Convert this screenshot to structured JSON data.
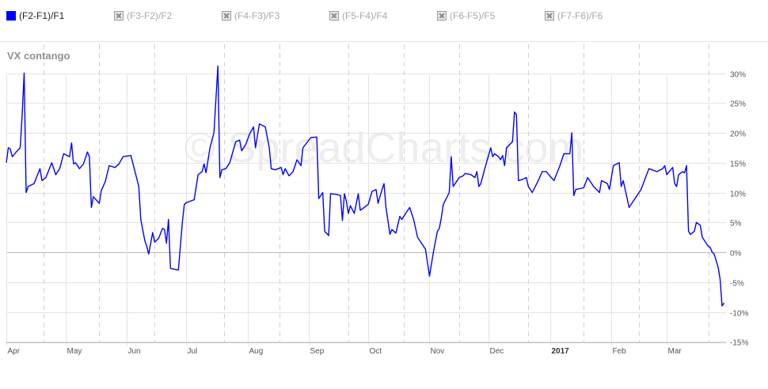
{
  "legend": [
    {
      "label": "(F2-F1)/F1",
      "active": true
    },
    {
      "label": "(F3-F2)/F2",
      "active": false
    },
    {
      "label": "(F4-F3)/F3",
      "active": false
    },
    {
      "label": "(F5-F4)/F4",
      "active": false
    },
    {
      "label": "(F6-F5)/F5",
      "active": false
    },
    {
      "label": "(F7-F6)/F6",
      "active": false
    }
  ],
  "watermark": "© SpreadCharts.com",
  "colors": {
    "series": "#0000ff",
    "grid": "#e3e3e3",
    "zero": "#b8b8b8",
    "dashed": "#cfcfcf",
    "axis_text": "#555555"
  },
  "chart_data": {
    "type": "line",
    "title": "VX contango",
    "xlabel": "",
    "ylabel": "",
    "ylim": [
      -15,
      32
    ],
    "y_ticks": [
      30,
      25,
      20,
      15,
      10,
      5,
      0,
      -5,
      -10,
      -15
    ],
    "y_tick_labels": [
      "30%",
      "25%",
      "20%",
      "15%",
      "10%",
      "5%",
      "0%",
      "-5%",
      "-10%",
      "-15%"
    ],
    "x_range": [
      "2016-04-01",
      "2017-03-31"
    ],
    "x_ticks": [
      {
        "label": "Apr",
        "date": "2016-04-01",
        "bold": false
      },
      {
        "label": "May",
        "date": "2016-05-01",
        "bold": false
      },
      {
        "label": "Jun",
        "date": "2016-06-01",
        "bold": false
      },
      {
        "label": "Jul",
        "date": "2016-07-01",
        "bold": false
      },
      {
        "label": "Aug",
        "date": "2016-08-01",
        "bold": false
      },
      {
        "label": "Sep",
        "date": "2016-09-01",
        "bold": false
      },
      {
        "label": "Oct",
        "date": "2016-10-01",
        "bold": false
      },
      {
        "label": "Nov",
        "date": "2016-11-01",
        "bold": false
      },
      {
        "label": "Dec",
        "date": "2016-12-01",
        "bold": false
      },
      {
        "label": "2017",
        "date": "2017-01-01",
        "bold": true
      },
      {
        "label": "Feb",
        "date": "2017-02-01",
        "bold": false
      },
      {
        "label": "Mar",
        "date": "2017-03-01",
        "bold": false
      }
    ],
    "expiry_markers": [
      "2016-04-20",
      "2016-05-18",
      "2016-06-15",
      "2016-07-20",
      "2016-08-17",
      "2016-09-21",
      "2016-10-19",
      "2016-11-16",
      "2016-12-21",
      "2017-01-18",
      "2017-02-15",
      "2017-03-22"
    ],
    "grid": true,
    "series": [
      {
        "name": "(F2-F1)/F1",
        "points": [
          [
            "2016-04-01",
            15.0
          ],
          [
            "2016-04-02",
            17.5
          ],
          [
            "2016-04-03",
            17.3
          ],
          [
            "2016-04-04",
            16.0
          ],
          [
            "2016-04-06",
            16.8
          ],
          [
            "2016-04-08",
            17.5
          ],
          [
            "2016-04-09",
            23.0
          ],
          [
            "2016-04-10",
            30.0
          ],
          [
            "2016-04-11",
            10.0
          ],
          [
            "2016-04-12",
            11.0
          ],
          [
            "2016-04-15",
            11.5
          ],
          [
            "2016-04-18",
            14.0
          ],
          [
            "2016-04-19",
            12.0
          ],
          [
            "2016-04-21",
            12.5
          ],
          [
            "2016-04-24",
            15.0
          ],
          [
            "2016-04-26",
            13.0
          ],
          [
            "2016-04-28",
            14.0
          ],
          [
            "2016-04-30",
            16.5
          ],
          [
            "2016-05-03",
            16.0
          ],
          [
            "2016-05-04",
            18.3
          ],
          [
            "2016-05-05",
            14.8
          ],
          [
            "2016-05-06",
            15.0
          ],
          [
            "2016-05-08",
            14.0
          ],
          [
            "2016-05-10",
            14.8
          ],
          [
            "2016-05-12",
            16.8
          ],
          [
            "2016-05-13",
            16.0
          ],
          [
            "2016-05-14",
            7.5
          ],
          [
            "2016-05-15",
            9.3
          ],
          [
            "2016-05-18",
            8.2
          ],
          [
            "2016-05-19",
            10.3
          ],
          [
            "2016-05-21",
            11.8
          ],
          [
            "2016-05-23",
            14.5
          ],
          [
            "2016-05-26",
            14.2
          ],
          [
            "2016-05-28",
            14.8
          ],
          [
            "2016-05-30",
            16.0
          ],
          [
            "2016-06-03",
            16.2
          ],
          [
            "2016-06-07",
            11.0
          ],
          [
            "2016-06-08",
            5.5
          ],
          [
            "2016-06-10",
            2.0
          ],
          [
            "2016-06-11",
            1.0
          ],
          [
            "2016-06-12",
            -0.3
          ],
          [
            "2016-06-14",
            3.3
          ],
          [
            "2016-06-15",
            1.7
          ],
          [
            "2016-06-17",
            2.3
          ],
          [
            "2016-06-19",
            4.0
          ],
          [
            "2016-06-20",
            3.8
          ],
          [
            "2016-06-21",
            1.5
          ],
          [
            "2016-06-22",
            5.5
          ],
          [
            "2016-06-23",
            -2.7
          ],
          [
            "2016-06-27",
            -3.0
          ],
          [
            "2016-06-29",
            5.0
          ],
          [
            "2016-06-30",
            8.0
          ],
          [
            "2016-07-01",
            8.3
          ],
          [
            "2016-07-05",
            8.8
          ],
          [
            "2016-07-07",
            13.0
          ],
          [
            "2016-07-09",
            13.5
          ],
          [
            "2016-07-10",
            14.8
          ],
          [
            "2016-07-11",
            13.3
          ],
          [
            "2016-07-13",
            17.5
          ],
          [
            "2016-07-15",
            20.0
          ],
          [
            "2016-07-17",
            31.2
          ],
          [
            "2016-07-18",
            12.5
          ],
          [
            "2016-07-19",
            13.8
          ],
          [
            "2016-07-21",
            14.0
          ],
          [
            "2016-07-23",
            15.0
          ],
          [
            "2016-07-26",
            18.5
          ],
          [
            "2016-07-28",
            18.8
          ],
          [
            "2016-07-29",
            17.0
          ],
          [
            "2016-07-31",
            18.0
          ],
          [
            "2016-08-02",
            19.8
          ],
          [
            "2016-08-04",
            21.0
          ],
          [
            "2016-08-05",
            17.5
          ],
          [
            "2016-08-07",
            21.5
          ],
          [
            "2016-08-10",
            21.0
          ],
          [
            "2016-08-12",
            17.5
          ],
          [
            "2016-08-13",
            14.0
          ],
          [
            "2016-08-15",
            13.8
          ],
          [
            "2016-08-18",
            14.2
          ],
          [
            "2016-08-19",
            13.0
          ],
          [
            "2016-08-20",
            14.0
          ],
          [
            "2016-08-22",
            12.8
          ],
          [
            "2016-08-24",
            13.5
          ],
          [
            "2016-08-26",
            15.5
          ],
          [
            "2016-08-28",
            14.5
          ],
          [
            "2016-08-29",
            17.5
          ],
          [
            "2016-09-02",
            19.2
          ],
          [
            "2016-09-05",
            19.3
          ],
          [
            "2016-09-06",
            9.0
          ],
          [
            "2016-09-08",
            10.0
          ],
          [
            "2016-09-09",
            3.5
          ],
          [
            "2016-09-11",
            2.8
          ],
          [
            "2016-09-12",
            9.8
          ],
          [
            "2016-09-15",
            9.7
          ],
          [
            "2016-09-17",
            9.5
          ],
          [
            "2016-09-18",
            5.3
          ],
          [
            "2016-09-19",
            9.8
          ],
          [
            "2016-09-20",
            8.5
          ],
          [
            "2016-09-21",
            6.5
          ],
          [
            "2016-09-22",
            7.8
          ],
          [
            "2016-09-24",
            6.5
          ],
          [
            "2016-09-26",
            9.8
          ],
          [
            "2016-09-27",
            7.0
          ],
          [
            "2016-09-29",
            7.5
          ],
          [
            "2016-10-01",
            8.0
          ],
          [
            "2016-10-03",
            10.2
          ],
          [
            "2016-10-05",
            10.5
          ],
          [
            "2016-10-06",
            8.2
          ],
          [
            "2016-10-08",
            10.5
          ],
          [
            "2016-10-09",
            11.5
          ],
          [
            "2016-10-10",
            7.5
          ],
          [
            "2016-10-12",
            3.0
          ],
          [
            "2016-10-13",
            3.8
          ],
          [
            "2016-10-15",
            3.2
          ],
          [
            "2016-10-17",
            6.0
          ],
          [
            "2016-10-18",
            5.5
          ],
          [
            "2016-10-20",
            6.5
          ],
          [
            "2016-10-22",
            7.5
          ],
          [
            "2016-10-24",
            5.5
          ],
          [
            "2016-10-26",
            2.5
          ],
          [
            "2016-10-28",
            1.5
          ],
          [
            "2016-10-30",
            0.5
          ],
          [
            "2016-11-01",
            -4.0
          ],
          [
            "2016-11-03",
            0.0
          ],
          [
            "2016-11-05",
            3.5
          ],
          [
            "2016-11-06",
            4.0
          ],
          [
            "2016-11-07",
            5.8
          ],
          [
            "2016-11-08",
            8.0
          ],
          [
            "2016-11-11",
            10.0
          ],
          [
            "2016-11-12",
            16.0
          ],
          [
            "2016-11-13",
            11.0
          ],
          [
            "2016-11-14",
            11.5
          ],
          [
            "2016-11-16",
            12.5
          ],
          [
            "2016-11-18",
            12.8
          ],
          [
            "2016-11-19",
            13.2
          ],
          [
            "2016-11-22",
            13.0
          ],
          [
            "2016-11-24",
            12.5
          ],
          [
            "2016-11-25",
            13.5
          ],
          [
            "2016-11-26",
            11.0
          ],
          [
            "2016-11-27",
            11.5
          ],
          [
            "2016-11-29",
            14.0
          ],
          [
            "2016-12-02",
            17.5
          ],
          [
            "2016-12-03",
            16.0
          ],
          [
            "2016-12-04",
            16.5
          ],
          [
            "2016-12-06",
            16.0
          ],
          [
            "2016-12-07",
            15.5
          ],
          [
            "2016-12-08",
            16.2
          ],
          [
            "2016-12-09",
            14.5
          ],
          [
            "2016-12-10",
            17.5
          ],
          [
            "2016-12-13",
            18.5
          ],
          [
            "2016-12-14",
            23.5
          ],
          [
            "2016-12-15",
            23.0
          ],
          [
            "2016-12-16",
            12.0
          ],
          [
            "2016-12-18",
            12.2
          ],
          [
            "2016-12-20",
            12.5
          ],
          [
            "2016-12-21",
            11.0
          ],
          [
            "2016-12-23",
            10.0
          ],
          [
            "2016-12-26",
            12.0
          ],
          [
            "2016-12-28",
            13.5
          ],
          [
            "2016-12-30",
            13.5
          ],
          [
            "2017-01-03",
            12.0
          ],
          [
            "2017-01-06",
            14.5
          ],
          [
            "2017-01-08",
            16.5
          ],
          [
            "2017-01-11",
            16.5
          ],
          [
            "2017-01-12",
            20.0
          ],
          [
            "2017-01-13",
            9.5
          ],
          [
            "2017-01-14",
            10.5
          ],
          [
            "2017-01-18",
            10.8
          ],
          [
            "2017-01-20",
            12.5
          ],
          [
            "2017-01-23",
            11.0
          ],
          [
            "2017-01-26",
            10.0
          ],
          [
            "2017-01-27",
            12.0
          ],
          [
            "2017-01-30",
            11.5
          ],
          [
            "2017-01-31",
            10.5
          ],
          [
            "2017-02-02",
            14.5
          ],
          [
            "2017-02-05",
            15.0
          ],
          [
            "2017-02-06",
            11.0
          ],
          [
            "2017-02-07",
            12.0
          ],
          [
            "2017-02-10",
            7.5
          ],
          [
            "2017-02-12",
            8.5
          ],
          [
            "2017-02-16",
            10.5
          ],
          [
            "2017-02-20",
            14.0
          ],
          [
            "2017-02-24",
            13.5
          ],
          [
            "2017-02-27",
            14.0
          ],
          [
            "2017-02-28",
            14.5
          ],
          [
            "2017-03-01",
            13.0
          ],
          [
            "2017-03-04",
            14.2
          ],
          [
            "2017-03-05",
            11.5
          ],
          [
            "2017-03-06",
            11.0
          ],
          [
            "2017-03-07",
            13.0
          ],
          [
            "2017-03-09",
            13.5
          ],
          [
            "2017-03-10",
            13.3
          ],
          [
            "2017-03-11",
            14.5
          ],
          [
            "2017-03-12",
            3.5
          ],
          [
            "2017-03-13",
            3.0
          ],
          [
            "2017-03-15",
            3.5
          ],
          [
            "2017-03-16",
            5.0
          ],
          [
            "2017-03-18",
            4.5
          ],
          [
            "2017-03-19",
            2.5
          ],
          [
            "2017-03-21",
            1.5
          ],
          [
            "2017-03-22",
            1.0
          ],
          [
            "2017-03-23",
            0.8
          ],
          [
            "2017-03-24",
            0.0
          ],
          [
            "2017-03-25",
            -0.3
          ],
          [
            "2017-03-27",
            -2.5
          ],
          [
            "2017-03-28",
            -4.5
          ],
          [
            "2017-03-29",
            -9.0
          ],
          [
            "2017-03-30",
            -8.5
          ]
        ]
      }
    ]
  }
}
